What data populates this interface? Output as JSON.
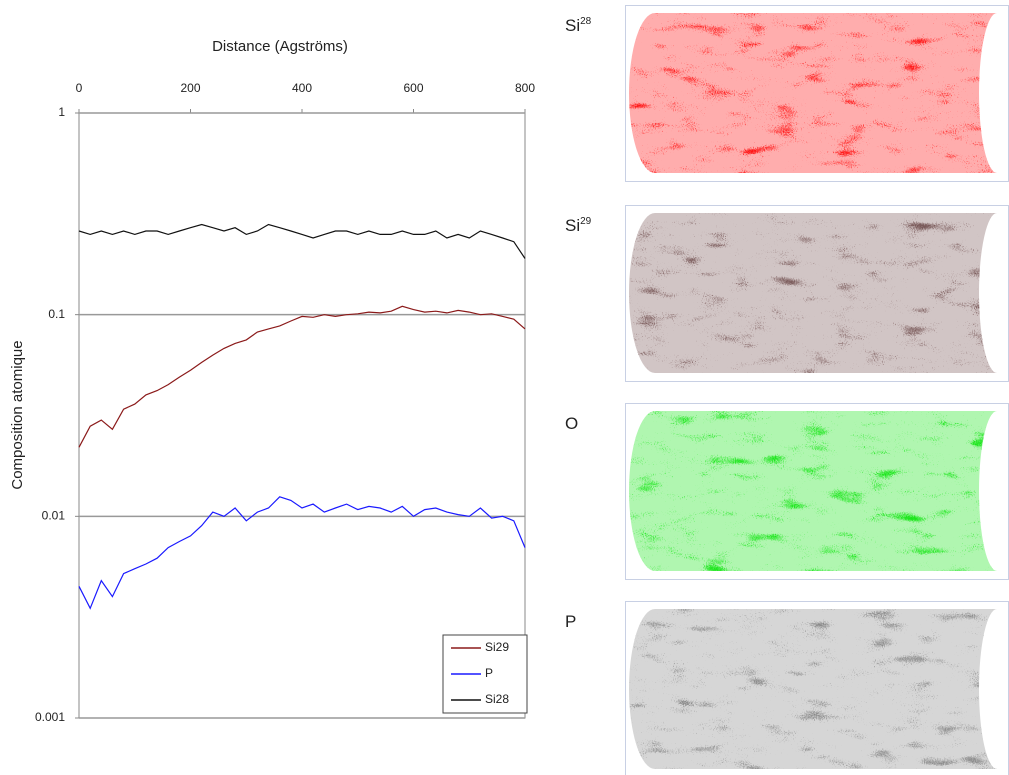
{
  "chart_data": {
    "type": "line",
    "x_label": "Distance (Agströms)",
    "y_label": "Composition atomique",
    "log_y": true,
    "grid": true,
    "legend": "lower right",
    "x": [
      0,
      20,
      40,
      60,
      80,
      100,
      120,
      140,
      160,
      180,
      200,
      220,
      240,
      260,
      280,
      300,
      320,
      340,
      360,
      380,
      400,
      420,
      440,
      460,
      480,
      500,
      520,
      540,
      560,
      580,
      600,
      620,
      640,
      660,
      680,
      700,
      720,
      740,
      760,
      780,
      800
    ],
    "xlim": [
      0,
      800
    ],
    "xticks": [
      0,
      200,
      400,
      600,
      800
    ],
    "ylim": [
      0.001,
      1
    ],
    "yticks": [
      0.001,
      0.01,
      0.1,
      1
    ],
    "series": [
      {
        "name": "Si29",
        "color": "#8b1a1a",
        "values": [
          0.022,
          0.028,
          0.03,
          0.027,
          0.034,
          0.036,
          0.04,
          0.042,
          0.045,
          0.049,
          0.053,
          0.058,
          0.063,
          0.068,
          0.072,
          0.075,
          0.082,
          0.085,
          0.088,
          0.093,
          0.098,
          0.097,
          0.1,
          0.098,
          0.1,
          0.101,
          0.103,
          0.102,
          0.104,
          0.11,
          0.106,
          0.103,
          0.104,
          0.102,
          0.105,
          0.103,
          0.1,
          0.101,
          0.098,
          0.095,
          0.085
        ]
      },
      {
        "name": "P",
        "color": "#1a1aff",
        "values": [
          0.0045,
          0.0035,
          0.0048,
          0.004,
          0.0052,
          0.0055,
          0.0058,
          0.0062,
          0.007,
          0.0075,
          0.008,
          0.009,
          0.0105,
          0.01,
          0.011,
          0.0095,
          0.0105,
          0.011,
          0.0125,
          0.012,
          0.011,
          0.0115,
          0.0105,
          0.011,
          0.0115,
          0.0108,
          0.0112,
          0.011,
          0.0105,
          0.0112,
          0.01,
          0.0108,
          0.011,
          0.0105,
          0.0102,
          0.01,
          0.011,
          0.0098,
          0.01,
          0.0095,
          0.007
        ]
      },
      {
        "name": "Si28",
        "color": "#111111",
        "values": [
          0.26,
          0.25,
          0.26,
          0.25,
          0.26,
          0.25,
          0.26,
          0.26,
          0.25,
          0.26,
          0.27,
          0.28,
          0.27,
          0.26,
          0.27,
          0.25,
          0.26,
          0.28,
          0.27,
          0.26,
          0.25,
          0.24,
          0.25,
          0.26,
          0.26,
          0.25,
          0.26,
          0.25,
          0.25,
          0.26,
          0.25,
          0.25,
          0.26,
          0.24,
          0.25,
          0.24,
          0.26,
          0.25,
          0.24,
          0.23,
          0.19
        ]
      }
    ]
  },
  "images": [
    {
      "label": "Si",
      "sup": "28",
      "label_color": "#e0201e",
      "color": "#ff1414"
    },
    {
      "label": "Si",
      "sup": "29",
      "label_color": "#a0805e",
      "color": "#7a5a5a"
    },
    {
      "label": "O",
      "label_color": "#2fbf2f",
      "color": "#1ee61e"
    },
    {
      "label": "P",
      "label_color": "#111111",
      "color": "#8a8a8a"
    }
  ]
}
